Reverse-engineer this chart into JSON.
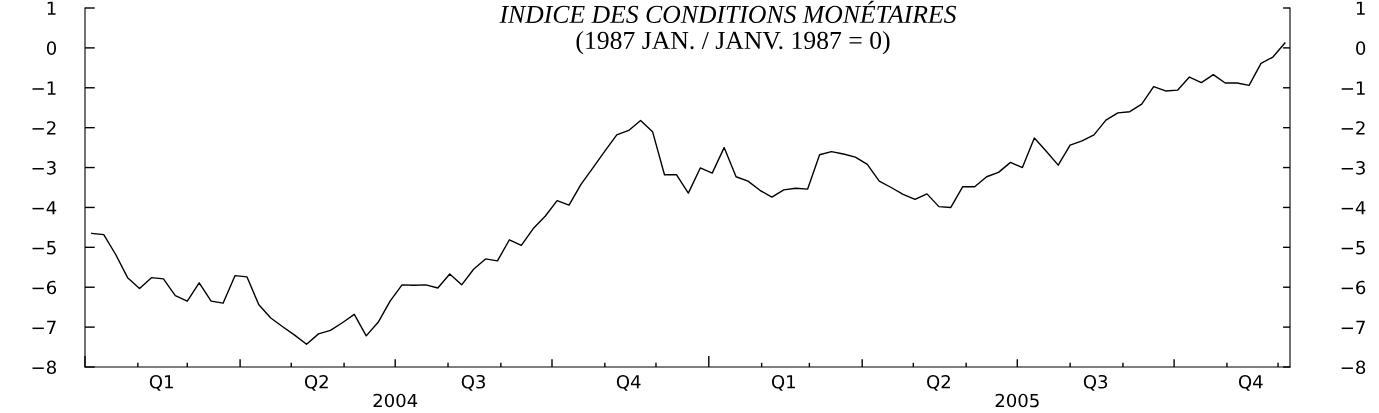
{
  "chart_data": {
    "type": "line",
    "title": "INDICE DES CONDITIONS MONÉTAIRES",
    "subtitle": "(1987 JAN. / JANV. 1987 = 0)",
    "x": [
      "2004-01-05",
      "2004-01-12",
      "2004-01-19",
      "2004-01-26",
      "2004-02-02",
      "2004-02-09",
      "2004-02-16",
      "2004-02-23",
      "2004-03-01",
      "2004-03-08",
      "2004-03-15",
      "2004-03-22",
      "2004-03-29",
      "2004-04-05",
      "2004-04-12",
      "2004-04-19",
      "2004-04-26",
      "2004-05-03",
      "2004-05-10",
      "2004-05-17",
      "2004-05-24",
      "2004-05-31",
      "2004-06-07",
      "2004-06-14",
      "2004-06-21",
      "2004-06-28",
      "2004-07-05",
      "2004-07-12",
      "2004-07-19",
      "2004-07-26",
      "2004-08-02",
      "2004-08-09",
      "2004-08-16",
      "2004-08-23",
      "2004-08-30",
      "2004-09-06",
      "2004-09-13",
      "2004-09-20",
      "2004-09-27",
      "2004-10-04",
      "2004-10-11",
      "2004-10-18",
      "2004-10-25",
      "2004-11-01",
      "2004-11-08",
      "2004-11-15",
      "2004-11-22",
      "2004-11-29",
      "2004-12-06",
      "2004-12-13",
      "2004-12-20",
      "2004-12-27",
      "2005-01-03",
      "2005-01-10",
      "2005-01-17",
      "2005-01-24",
      "2005-01-31",
      "2005-02-07",
      "2005-02-14",
      "2005-02-21",
      "2005-02-28",
      "2005-03-07",
      "2005-03-14",
      "2005-03-21",
      "2005-03-28",
      "2005-04-04",
      "2005-04-11",
      "2005-04-18",
      "2005-04-25",
      "2005-05-02",
      "2005-05-09",
      "2005-05-16",
      "2005-05-23",
      "2005-05-30",
      "2005-06-06",
      "2005-06-13",
      "2005-06-20",
      "2005-06-27",
      "2005-07-04",
      "2005-07-11",
      "2005-07-18",
      "2005-07-25",
      "2005-08-01",
      "2005-08-08",
      "2005-08-15",
      "2005-08-22",
      "2005-08-29",
      "2005-09-05",
      "2005-09-12",
      "2005-09-19",
      "2005-09-26",
      "2005-10-03",
      "2005-10-10",
      "2005-10-17",
      "2005-10-24",
      "2005-10-31",
      "2005-11-07",
      "2005-11-14",
      "2005-11-21",
      "2005-11-28",
      "2005-12-05"
    ],
    "series": [
      {
        "color": "#000000",
        "values": [
          -4.65,
          -4.68,
          -5.18,
          -5.76,
          -6.03,
          -5.76,
          -5.79,
          -6.21,
          -6.35,
          -5.89,
          -6.35,
          -6.4,
          -5.71,
          -5.74,
          -6.44,
          -6.77,
          -6.99,
          -7.2,
          -7.43,
          -7.17,
          -7.08,
          -6.89,
          -6.68,
          -7.22,
          -6.88,
          -6.35,
          -5.94,
          -5.95,
          -5.94,
          -6.02,
          -5.67,
          -5.94,
          -5.55,
          -5.29,
          -5.34,
          -4.81,
          -4.95,
          -4.53,
          -4.22,
          -3.83,
          -3.94,
          -3.42,
          -3.01,
          -2.59,
          -2.18,
          -2.07,
          -1.82,
          -2.1,
          -3.18,
          -3.18,
          -3.64,
          -3.01,
          -3.14,
          -2.5,
          -3.23,
          -3.34,
          -3.57,
          -3.74,
          -3.56,
          -3.52,
          -3.54,
          -2.68,
          -2.6,
          -2.66,
          -2.74,
          -2.92,
          -3.34,
          -3.5,
          -3.67,
          -3.8,
          -3.66,
          -3.98,
          -4.0,
          -3.48,
          -3.48,
          -3.23,
          -3.12,
          -2.87,
          -3.0,
          -2.26,
          -2.59,
          -2.94,
          -2.44,
          -2.33,
          -2.18,
          -1.81,
          -1.63,
          -1.6,
          -1.41,
          -0.97,
          -1.08,
          -1.06,
          -0.73,
          -0.87,
          -0.67,
          -0.88,
          -0.88,
          -0.94,
          -0.39,
          -0.23,
          0.12
        ]
      }
    ],
    "xlim": [
      "2004-01-01",
      "2005-12-08"
    ],
    "xticks": [
      {
        "value": "2004-01-01",
        "label": null
      },
      {
        "value": "2004-02-01",
        "label": null
      },
      {
        "value": "2004-02-15",
        "label": "Q1"
      },
      {
        "value": "2004-03-01",
        "label": null
      },
      {
        "value": "2004-04-01",
        "label": null
      },
      {
        "value": "2004-05-01",
        "label": null
      },
      {
        "value": "2004-05-16",
        "label": "Q2"
      },
      {
        "value": "2004-06-01",
        "label": null
      },
      {
        "value": "2004-07-01",
        "label": null
      },
      {
        "value": "2004-08-01",
        "label": null
      },
      {
        "value": "2004-08-16",
        "label": "Q3"
      },
      {
        "value": "2004-09-01",
        "label": null
      },
      {
        "value": "2004-10-01",
        "label": null
      },
      {
        "value": "2004-11-01",
        "label": null
      },
      {
        "value": "2004-11-15",
        "label": "Q4"
      },
      {
        "value": "2004-12-01",
        "label": null
      },
      {
        "value": "2005-01-01",
        "label": null
      },
      {
        "value": "2005-02-01",
        "label": null
      },
      {
        "value": "2005-02-14",
        "label": "Q1"
      },
      {
        "value": "2005-03-01",
        "label": null
      },
      {
        "value": "2005-04-01",
        "label": null
      },
      {
        "value": "2005-05-01",
        "label": null
      },
      {
        "value": "2005-05-16",
        "label": "Q2"
      },
      {
        "value": "2005-06-01",
        "label": null
      },
      {
        "value": "2005-07-01",
        "label": null
      },
      {
        "value": "2005-08-01",
        "label": null
      },
      {
        "value": "2005-08-16",
        "label": "Q3"
      },
      {
        "value": "2005-09-01",
        "label": null
      },
      {
        "value": "2005-10-01",
        "label": null
      },
      {
        "value": "2005-11-01",
        "label": null
      },
      {
        "value": "2005-11-15",
        "label": "Q4"
      },
      {
        "value": "2005-12-01",
        "label": null
      }
    ],
    "x2lim": [
      "2004-01-01",
      "2005-12-08"
    ],
    "x2ticks": [
      {
        "value": "2004-07-01",
        "label": "2004"
      },
      {
        "value": "2005-07-01",
        "label": "2005"
      }
    ],
    "ylim": [
      -8,
      1
    ],
    "yticks": [
      1,
      0,
      {
        "value": -1,
        "label": "−1"
      },
      {
        "value": -2,
        "label": "−2"
      },
      {
        "value": -3,
        "label": "−3"
      },
      {
        "value": -4,
        "label": "−4"
      },
      {
        "value": -5,
        "label": "−5"
      },
      {
        "value": -6,
        "label": "−6"
      },
      {
        "value": -7,
        "label": "−7"
      },
      {
        "value": -8,
        "label": "−8"
      }
    ],
    "y2lim": [
      -8,
      1
    ],
    "y2ticks": [
      1,
      0,
      {
        "value": -1,
        "label": "−1"
      },
      {
        "value": -2,
        "label": "−2"
      },
      {
        "value": -3,
        "label": "−3"
      },
      {
        "value": -4,
        "label": "−4"
      },
      {
        "value": -5,
        "label": "−5"
      },
      {
        "value": -6,
        "label": "−6"
      },
      {
        "value": -7,
        "label": "−7"
      },
      {
        "value": -8,
        "label": "−8"
      }
    ],
    "grid": false,
    "marker": "none",
    "line_style": "solid"
  }
}
